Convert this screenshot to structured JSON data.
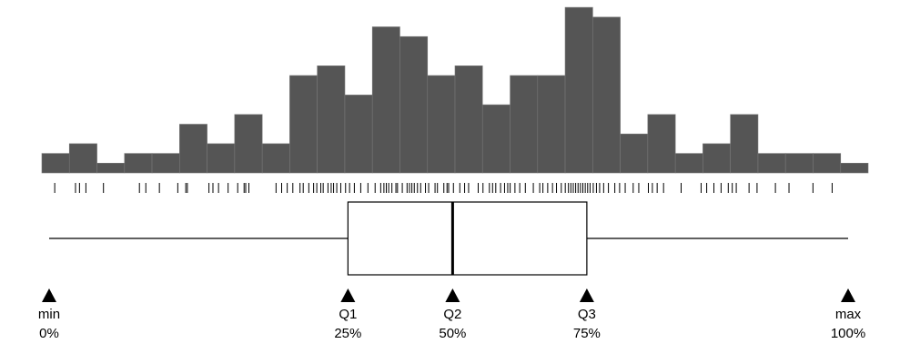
{
  "chart_data": {
    "type": "histogram",
    "x_range": [
      0,
      100
    ],
    "bins": [
      {
        "start": 0.0,
        "end": 3.33,
        "count": 2
      },
      {
        "start": 3.33,
        "end": 6.67,
        "count": 3
      },
      {
        "start": 6.67,
        "end": 10.0,
        "count": 1
      },
      {
        "start": 10.0,
        "end": 13.33,
        "count": 2
      },
      {
        "start": 13.33,
        "end": 16.67,
        "count": 2
      },
      {
        "start": 16.67,
        "end": 20.0,
        "count": 5
      },
      {
        "start": 20.0,
        "end": 23.33,
        "count": 3
      },
      {
        "start": 23.33,
        "end": 26.67,
        "count": 6
      },
      {
        "start": 26.67,
        "end": 30.0,
        "count": 3
      },
      {
        "start": 30.0,
        "end": 33.33,
        "count": 10
      },
      {
        "start": 33.33,
        "end": 36.67,
        "count": 11
      },
      {
        "start": 36.67,
        "end": 40.0,
        "count": 8
      },
      {
        "start": 40.0,
        "end": 43.33,
        "count": 15
      },
      {
        "start": 43.33,
        "end": 46.67,
        "count": 14
      },
      {
        "start": 46.67,
        "end": 50.0,
        "count": 10
      },
      {
        "start": 50.0,
        "end": 53.33,
        "count": 11
      },
      {
        "start": 53.33,
        "end": 56.67,
        "count": 7
      },
      {
        "start": 56.67,
        "end": 60.0,
        "count": 10
      },
      {
        "start": 60.0,
        "end": 63.33,
        "count": 10
      },
      {
        "start": 63.33,
        "end": 66.67,
        "count": 17
      },
      {
        "start": 66.67,
        "end": 70.0,
        "count": 16
      },
      {
        "start": 70.0,
        "end": 73.33,
        "count": 4
      },
      {
        "start": 73.33,
        "end": 76.67,
        "count": 6
      },
      {
        "start": 76.67,
        "end": 80.0,
        "count": 2
      },
      {
        "start": 80.0,
        "end": 83.33,
        "count": 3
      },
      {
        "start": 83.33,
        "end": 86.67,
        "count": 6
      },
      {
        "start": 86.67,
        "end": 90.0,
        "count": 2
      },
      {
        "start": 90.0,
        "end": 93.33,
        "count": 2
      },
      {
        "start": 93.33,
        "end": 96.67,
        "count": 2
      },
      {
        "start": 96.67,
        "end": 100.0,
        "count": 1
      }
    ],
    "rug": [
      0.7,
      3.3,
      3.8,
      4.6,
      6.8,
      11.3,
      12.1,
      13.8,
      16.1,
      17.1,
      17.3,
      20.0,
      20.5,
      21.2,
      22.4,
      23.6,
      24.4,
      24.6,
      25.0,
      28.4,
      29.1,
      29.8,
      30.5,
      31.4,
      31.8,
      32.5,
      33.1,
      33.5,
      34.0,
      34.3,
      34.9,
      35.3,
      35.6,
      36.0,
      36.5,
      37.1,
      37.6,
      38.2,
      39.0,
      39.9,
      40.8,
      41.5,
      41.9,
      42.2,
      42.5,
      42.9,
      43.4,
      43.6,
      44.2,
      44.8,
      45.1,
      45.4,
      45.7,
      46.1,
      46.5,
      47.1,
      47.5,
      48.3,
      48.6,
      49.4,
      49.8,
      50.0,
      50.6,
      51.4,
      52.0,
      52.5,
      53.7,
      54.3,
      55.1,
      55.5,
      55.9,
      56.5,
      57.0,
      57.4,
      57.7,
      58.3,
      58.9,
      59.6,
      60.6,
      61.4,
      61.8,
      62.4,
      63.0,
      63.5,
      64.1,
      64.6,
      65.0,
      65.3,
      65.6,
      65.9,
      66.2,
      66.5,
      66.8,
      67.1,
      67.4,
      67.7,
      68.1,
      68.5,
      68.9,
      69.4,
      70.0,
      70.8,
      71.4,
      72.1,
      73.1,
      73.8,
      75.0,
      75.5,
      76.1,
      76.9,
      79.1,
      81.6,
      82.3,
      83.2,
      84.1,
      85.0,
      85.5,
      86.0,
      87.6,
      88.6,
      90.9,
      92.6,
      95.6,
      98.0
    ],
    "boxplot": {
      "min": 0,
      "q1": 37.4,
      "median": 50.5,
      "q3": 67.3,
      "max": 100
    },
    "annotations": [
      {
        "name": "min",
        "value": 0,
        "label": "min",
        "percent": "0%"
      },
      {
        "name": "q1",
        "value": 37.4,
        "label": "Q1",
        "percent": "25%"
      },
      {
        "name": "q2",
        "value": 50.5,
        "label": "Q2",
        "percent": "50%"
      },
      {
        "name": "q3",
        "value": 67.3,
        "label": "Q3",
        "percent": "75%"
      },
      {
        "name": "max",
        "value": 100,
        "label": "max",
        "percent": "100%"
      }
    ],
    "colors": {
      "bars": "#555555",
      "bar_edge": "#777777",
      "box_stroke": "#000000",
      "markers": "#000000"
    },
    "grid": false,
    "legend": "none"
  }
}
